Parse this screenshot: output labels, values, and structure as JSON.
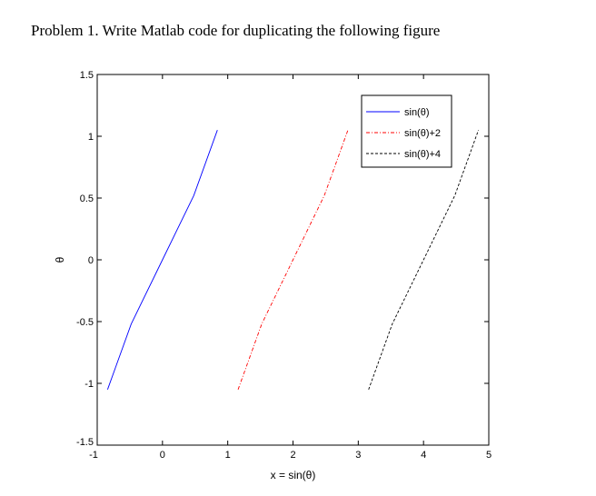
{
  "page": {
    "problem_text": "Problem 1. Write Matlab code for duplicating the following figure"
  },
  "chart_data": {
    "type": "line",
    "xlabel": "x = sin(θ)",
    "ylabel": "θ",
    "xlim": [
      -1,
      5
    ],
    "ylim": [
      -1.5,
      1.5
    ],
    "x_ticks": [
      -1,
      0,
      1,
      2,
      3,
      4,
      5
    ],
    "x_tick_labels": [
      "-1",
      "0",
      "1",
      "2",
      "3",
      "4",
      "5"
    ],
    "y_ticks": [
      -1.5,
      -1,
      -0.5,
      0,
      0.5,
      1,
      1.5
    ],
    "y_tick_labels": [
      "-1.5",
      "-1",
      "-0.5",
      "0",
      "0.5",
      "1",
      "1.5"
    ],
    "grid": false,
    "legend_position": "top-right",
    "series": [
      {
        "name": "sin(θ)",
        "color": "#0000ff",
        "style": "solid",
        "x": [
          -0.8415,
          -0.4794,
          0,
          0.4794,
          0.8415
        ],
        "y": [
          -1.05,
          -0.52,
          0,
          0.52,
          1.05
        ]
      },
      {
        "name": "sin(θ)+2",
        "color": "#ff0000",
        "style": "dashdot",
        "x": [
          1.1585,
          1.5206,
          2.0,
          2.4794,
          2.8415
        ],
        "y": [
          -1.05,
          -0.52,
          0,
          0.52,
          1.05
        ]
      },
      {
        "name": "sin(θ)+4",
        "color": "#000000",
        "style": "dashed",
        "x": [
          3.1585,
          3.5206,
          4.0,
          4.4794,
          4.8415
        ],
        "y": [
          -1.05,
          -0.52,
          0,
          0.52,
          1.05
        ]
      }
    ]
  }
}
